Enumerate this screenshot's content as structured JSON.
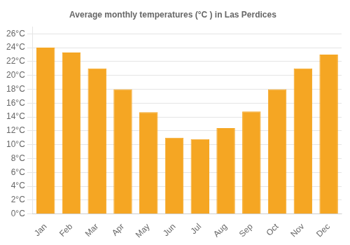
{
  "chart_data": {
    "type": "bar",
    "title": "Average monthly temperatures (°C ) in Las Perdices",
    "categories": [
      "Jan",
      "Feb",
      "Mar",
      "Apr",
      "May",
      "Jun",
      "Jul",
      "Aug",
      "Sep",
      "Oct",
      "Nov",
      "Dec"
    ],
    "values": [
      24.0,
      23.3,
      21.0,
      18.0,
      14.7,
      11.0,
      10.8,
      12.4,
      14.8,
      18.0,
      21.0,
      23.0
    ],
    "color": "#F5A623",
    "ylim": [
      0,
      27
    ],
    "yticks": [
      {
        "value": 0,
        "label": "0°C"
      },
      {
        "value": 2,
        "label": "2°C"
      },
      {
        "value": 4,
        "label": "4°C"
      },
      {
        "value": 6,
        "label": "6°C"
      },
      {
        "value": 8,
        "label": "8°C"
      },
      {
        "value": 10,
        "label": "10°C"
      },
      {
        "value": 12,
        "label": "12°C"
      },
      {
        "value": 14,
        "label": "14°C"
      },
      {
        "value": 16,
        "label": "16°C"
      },
      {
        "value": 18,
        "label": "18°C"
      },
      {
        "value": 20,
        "label": "20°C"
      },
      {
        "value": 22,
        "label": "22°C"
      },
      {
        "value": 24,
        "label": "24°C"
      },
      {
        "value": 26,
        "label": "26°C"
      }
    ],
    "grid": "y"
  }
}
